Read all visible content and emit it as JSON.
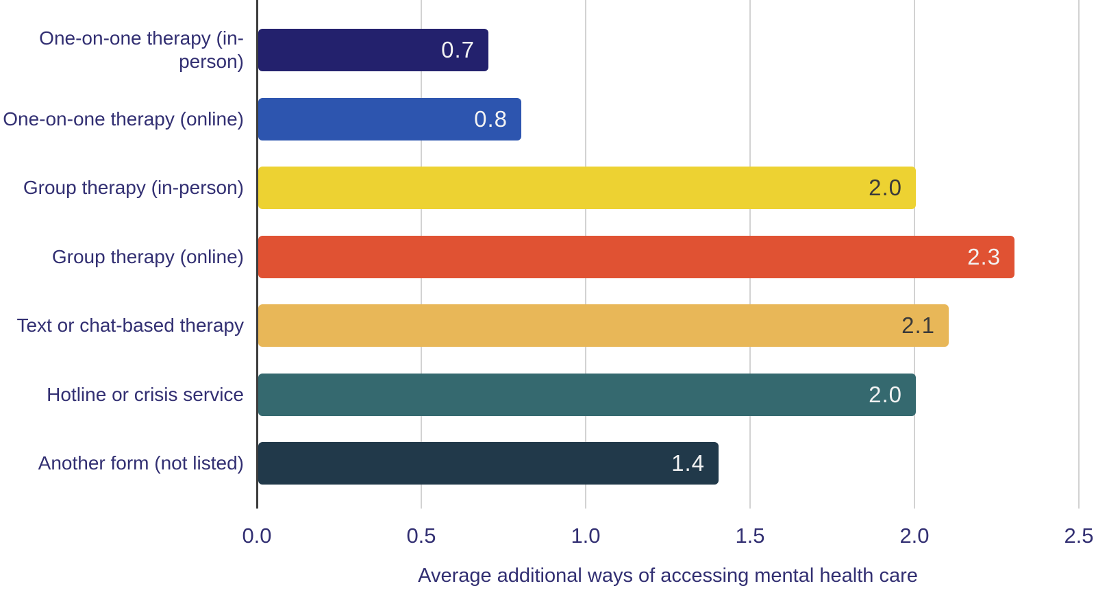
{
  "chart_data": {
    "type": "bar",
    "orientation": "horizontal",
    "categories": [
      "One-on-one therapy (in-person)",
      "One-on-one therapy (online)",
      "Group therapy (in-person)",
      "Group therapy (online)",
      "Text or chat-based therapy",
      "Hotline or crisis service",
      "Another form (not listed)"
    ],
    "values": [
      0.7,
      0.8,
      2.0,
      2.3,
      2.1,
      2.0,
      1.4
    ],
    "value_labels": [
      "0.7",
      "0.8",
      "2.0",
      "2.3",
      "2.1",
      "2.0",
      "1.4"
    ],
    "bar_colors": [
      "#23216d",
      "#2d55af",
      "#edd232",
      "#e05233",
      "#e8b758",
      "#35696f",
      "#21394a"
    ],
    "value_label_colors": [
      "#f2f2f2",
      "#f2f2f2",
      "#3a3a3a",
      "#f2f2f2",
      "#3a3a3a",
      "#f2f2f2",
      "#f2f2f2"
    ],
    "xlabel": "Average additional ways of accessing mental health care",
    "x_ticks": [
      0.0,
      0.5,
      1.0,
      1.5,
      2.0,
      2.5
    ],
    "x_tick_labels": [
      "0.0",
      "0.5",
      "1.0",
      "1.5",
      "2.0",
      "2.5"
    ],
    "xlim": [
      0.0,
      2.5
    ],
    "grid": "vertical-gridlines-on",
    "legend": "none"
  },
  "colors": {
    "background": "#ffffff",
    "axis_line": "#3d3d3d",
    "gridline": "#d2d2d2",
    "label_text": "#322f72"
  }
}
